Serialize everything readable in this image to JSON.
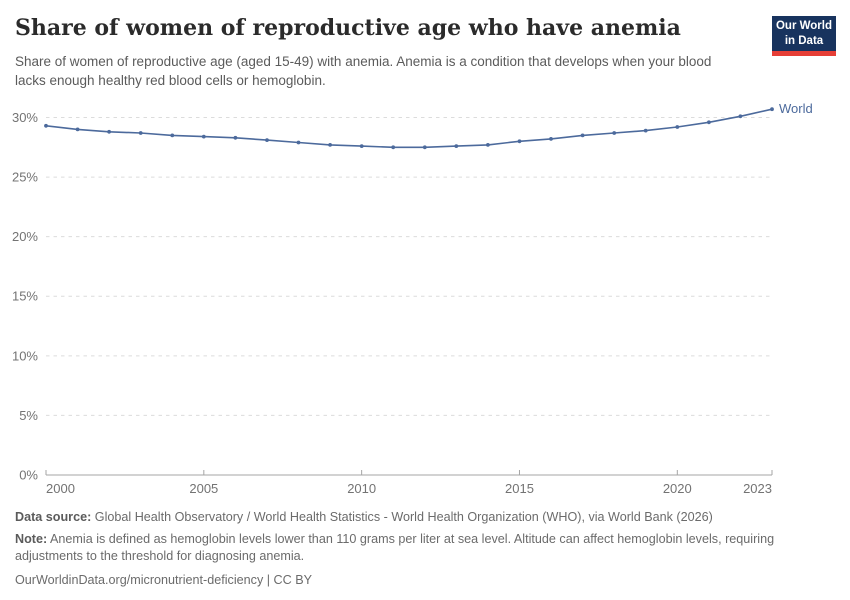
{
  "header": {
    "title": "Share of women of reproductive age who have anemia",
    "subtitle": "Share of women of reproductive age (aged 15-49) with anemia. Anemia is a condition that develops when your blood lacks enough healthy red blood cells or hemoglobin.",
    "logo": {
      "line1": "Our World",
      "line2": "in Data",
      "bg_color": "#18335E",
      "stripe_color": "#E63E36"
    }
  },
  "chart_data": {
    "type": "line",
    "title": "Share of women of reproductive age who have anemia",
    "xlabel": "",
    "ylabel": "",
    "x": [
      2000,
      2001,
      2002,
      2003,
      2004,
      2005,
      2006,
      2007,
      2008,
      2009,
      2010,
      2011,
      2012,
      2013,
      2014,
      2015,
      2016,
      2017,
      2018,
      2019,
      2020,
      2021,
      2022,
      2023
    ],
    "series": [
      {
        "name": "World",
        "color": "#4C6A9C",
        "values": [
          29.3,
          29.0,
          28.8,
          28.7,
          28.5,
          28.4,
          28.3,
          28.1,
          27.9,
          27.7,
          27.6,
          27.5,
          27.5,
          27.6,
          27.7,
          28.0,
          28.2,
          28.5,
          28.7,
          28.9,
          29.2,
          29.6,
          30.1,
          30.7
        ]
      }
    ],
    "ylim": [
      0,
      31
    ],
    "yticks": [
      0,
      5,
      10,
      15,
      20,
      25,
      30
    ],
    "ytick_labels": [
      "0%",
      "5%",
      "10%",
      "15%",
      "20%",
      "25%",
      "30%"
    ],
    "xticks": [
      2000,
      2005,
      2010,
      2015,
      2020,
      2023
    ],
    "xtick_labels": [
      "2000",
      "2005",
      "2010",
      "2015",
      "2020",
      "2023"
    ],
    "grid": "horizontal-dashed",
    "legend_position": "end-of-line-label"
  },
  "footer": {
    "data_source_label": "Data source:",
    "data_source": "Global Health Observatory / World Health Statistics - World Health Organization (WHO), via World Bank (2026)",
    "note_label": "Note:",
    "note": "Anemia is defined as hemoglobin levels lower than 110 grams per liter at sea level. Altitude can affect hemoglobin levels, requiring adjustments to the threshold for diagnosing anemia.",
    "citation": "OurWorldinData.org/micronutrient-deficiency | CC BY"
  }
}
